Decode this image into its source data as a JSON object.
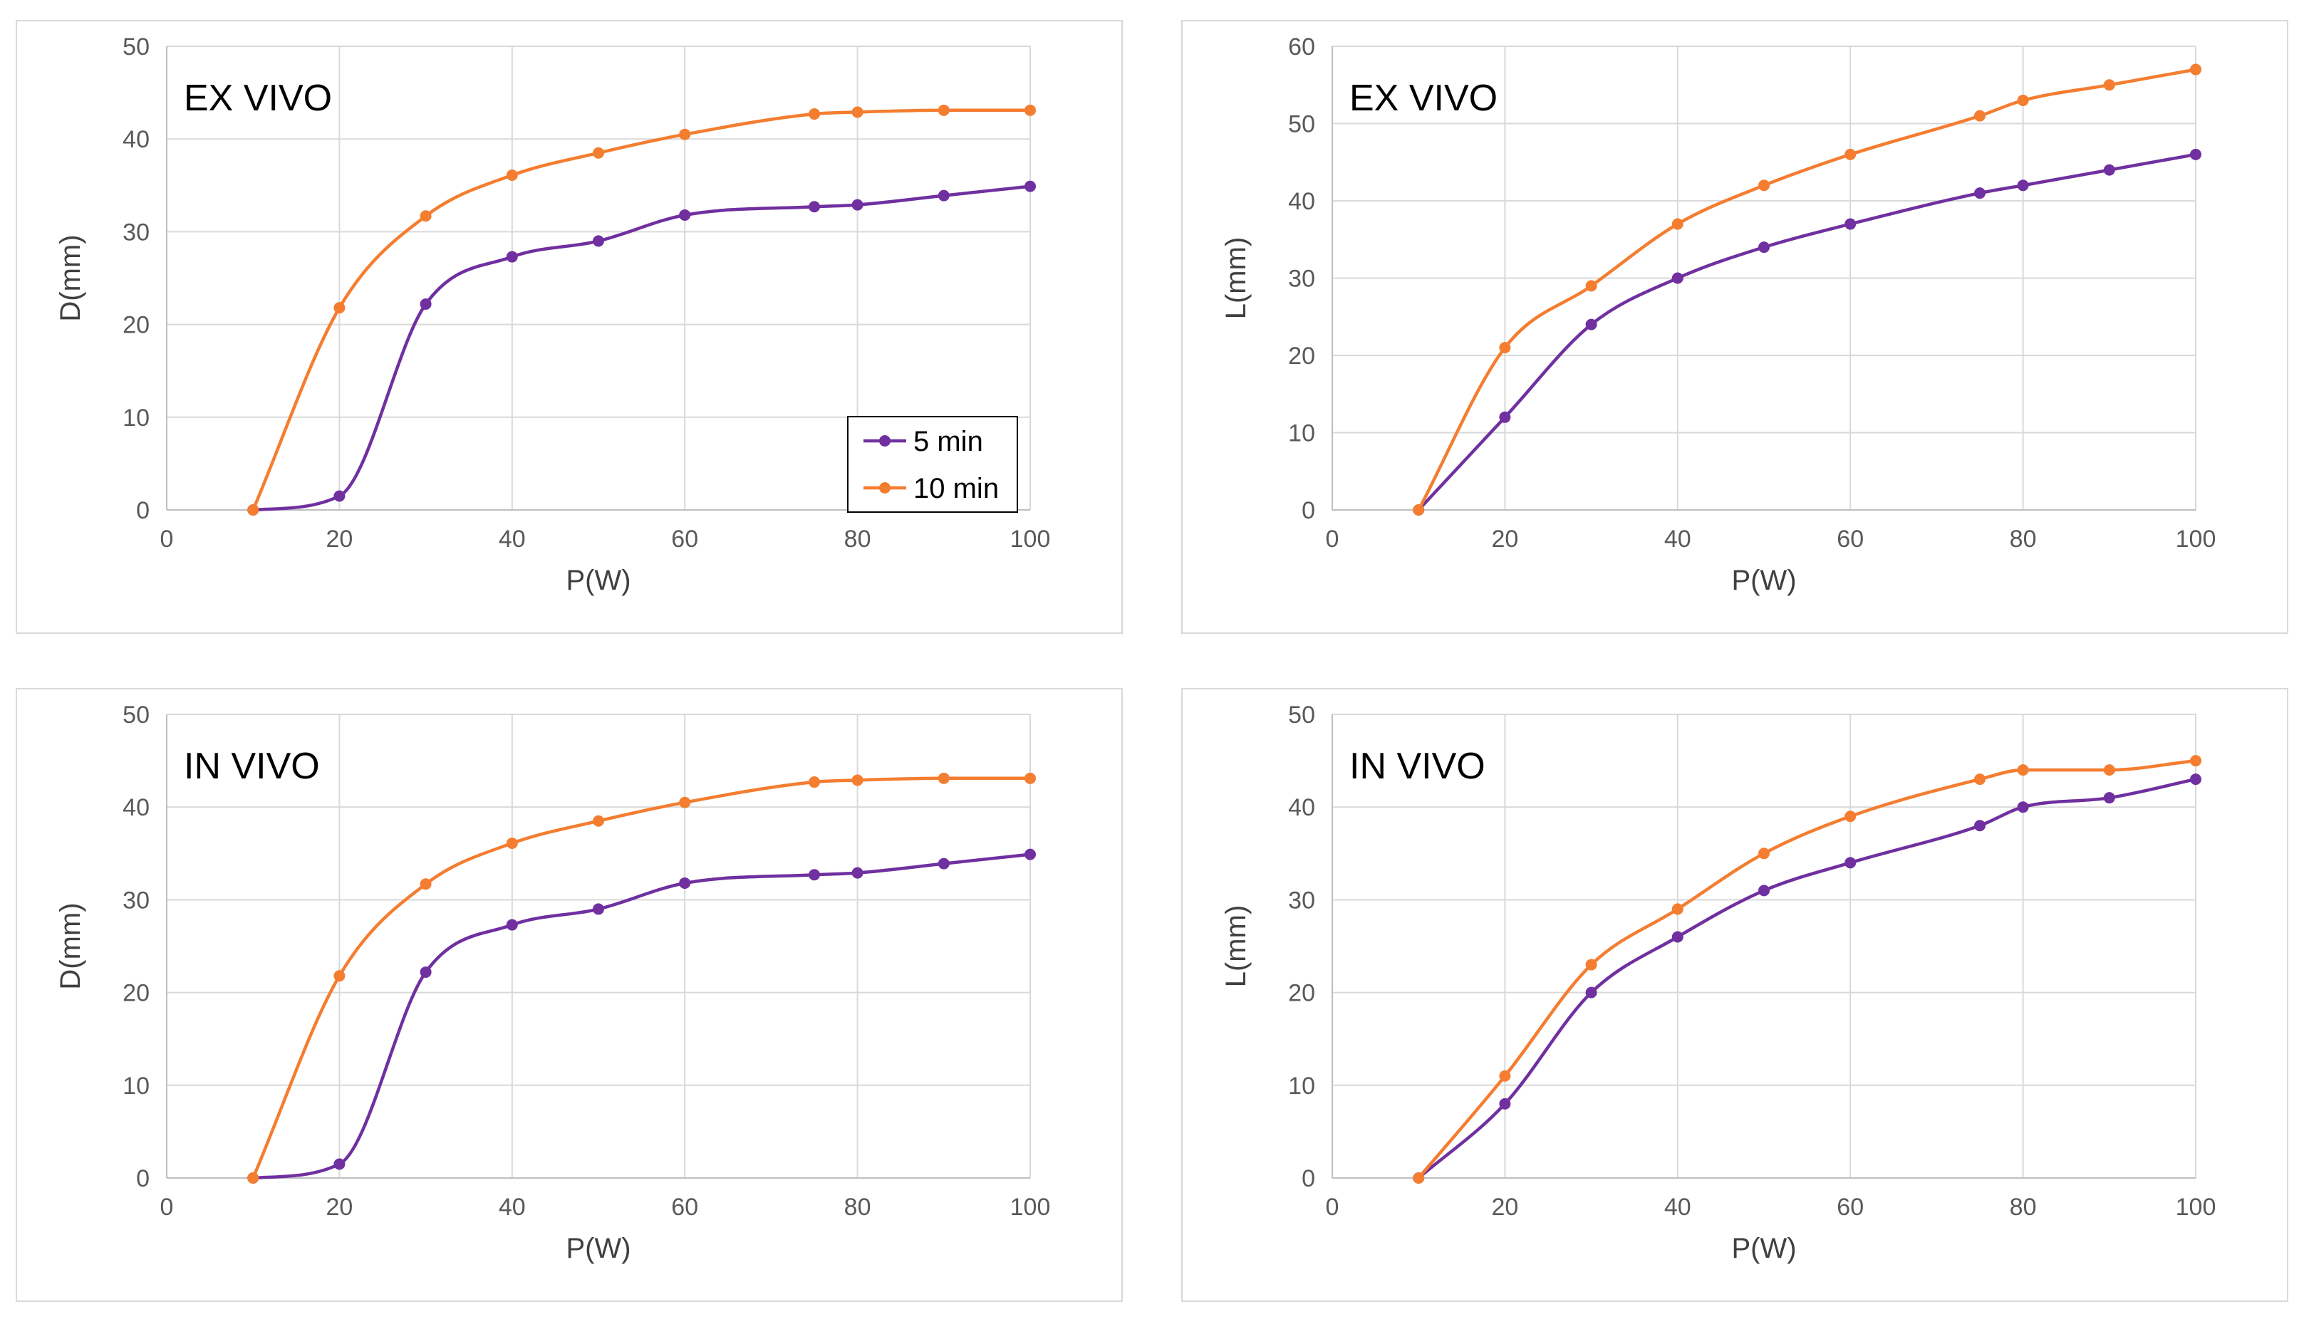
{
  "colors": {
    "series_5min": "#7030a0",
    "series_10min": "#f47d30",
    "grid": "#d9d9d9"
  },
  "chart_data": [
    {
      "type": "line",
      "title": "EX VIVO",
      "xlabel": "P(W)",
      "ylabel": "D(mm)",
      "xlim": [
        0,
        100
      ],
      "ylim": [
        0,
        50
      ],
      "xticks": [
        0,
        20,
        40,
        60,
        80,
        100
      ],
      "yticks": [
        0,
        10,
        20,
        30,
        40,
        50
      ],
      "grid": true,
      "legend": "lower-right",
      "x": [
        10,
        20,
        30,
        40,
        50,
        60,
        75,
        80,
        90,
        100
      ],
      "series": [
        {
          "name": "5 min",
          "values": [
            0,
            1.5,
            22.2,
            27.3,
            29,
            31.8,
            32.7,
            32.9,
            33.9,
            34.9
          ]
        },
        {
          "name": "10 min",
          "values": [
            0,
            21.8,
            31.7,
            36.1,
            38.5,
            40.5,
            42.7,
            42.9,
            43.1,
            43.1
          ]
        }
      ]
    },
    {
      "type": "line",
      "title": "EX VIVO",
      "xlabel": "P(W)",
      "ylabel": "L(mm)",
      "xlim": [
        0,
        100
      ],
      "ylim": [
        0,
        60
      ],
      "xticks": [
        0,
        20,
        40,
        60,
        80,
        100
      ],
      "yticks": [
        0,
        10,
        20,
        30,
        40,
        50,
        60
      ],
      "grid": true,
      "legend": "none",
      "x": [
        10,
        20,
        30,
        40,
        50,
        60,
        75,
        80,
        90,
        100
      ],
      "series": [
        {
          "name": "5 min",
          "values": [
            0,
            12,
            24,
            30,
            34,
            37,
            41,
            42,
            44,
            46
          ]
        },
        {
          "name": "10 min",
          "values": [
            0,
            21,
            29,
            37,
            42,
            46,
            51,
            53,
            55,
            57
          ]
        }
      ]
    },
    {
      "type": "line",
      "title": "IN VIVO",
      "xlabel": "P(W)",
      "ylabel": "D(mm)",
      "xlim": [
        0,
        100
      ],
      "ylim": [
        0,
        50
      ],
      "xticks": [
        0,
        20,
        40,
        60,
        80,
        100
      ],
      "yticks": [
        0,
        10,
        20,
        30,
        40,
        50
      ],
      "grid": true,
      "legend": "none",
      "x": [
        10,
        20,
        30,
        40,
        50,
        60,
        75,
        80,
        90,
        100
      ],
      "series": [
        {
          "name": "5 min",
          "values": [
            0,
            1.5,
            22.2,
            27.3,
            29,
            31.8,
            32.7,
            32.9,
            33.9,
            34.9
          ]
        },
        {
          "name": "10 min",
          "values": [
            0,
            21.8,
            31.7,
            36.1,
            38.5,
            40.5,
            42.7,
            42.9,
            43.1,
            43.1
          ]
        }
      ]
    },
    {
      "type": "line",
      "title": "IN VIVO",
      "xlabel": "P(W)",
      "ylabel": "L(mm)",
      "xlim": [
        0,
        100
      ],
      "ylim": [
        0,
        50
      ],
      "xticks": [
        0,
        20,
        40,
        60,
        80,
        100
      ],
      "yticks": [
        0,
        10,
        20,
        30,
        40,
        50
      ],
      "grid": true,
      "legend": "none",
      "x": [
        10,
        20,
        30,
        40,
        50,
        60,
        75,
        80,
        90,
        100
      ],
      "series": [
        {
          "name": "5 min",
          "values": [
            0,
            8,
            20,
            26,
            31,
            34,
            38,
            40,
            41,
            43
          ]
        },
        {
          "name": "10 min",
          "values": [
            0,
            11,
            23,
            29,
            35,
            39,
            43,
            44,
            44,
            45
          ]
        }
      ]
    }
  ]
}
